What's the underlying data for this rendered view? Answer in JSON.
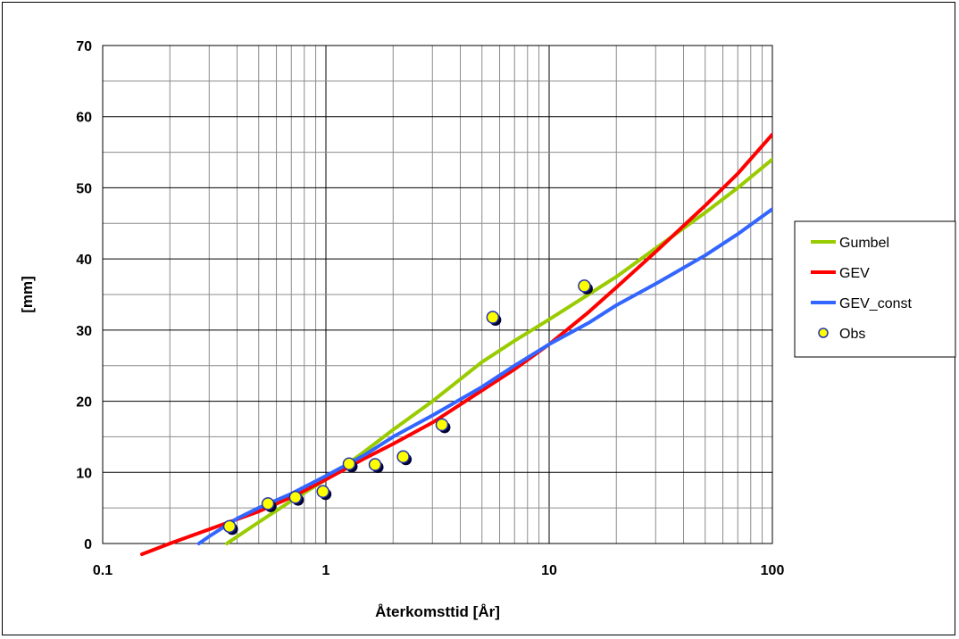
{
  "chart_data": {
    "type": "line",
    "xscale": "log",
    "xlim": [
      0.1,
      100
    ],
    "ylim": [
      0,
      70
    ],
    "xticks": [
      0.1,
      1,
      10,
      100
    ],
    "xtick_labels": [
      "0.1",
      "1",
      "10",
      "100"
    ],
    "yticks": [
      0,
      10,
      20,
      30,
      40,
      50,
      60,
      70
    ],
    "ytick_labels": [
      "0",
      "10",
      "20",
      "30",
      "40",
      "50",
      "60",
      "70"
    ],
    "xlabel": "Återkomsttid [År]",
    "ylabel": "[mm]",
    "grid": true,
    "legend_position": "right",
    "series": [
      {
        "name": "Gumbel",
        "color": "#99cc00",
        "x": [
          0.36,
          0.5,
          0.7,
          1,
          1.5,
          2,
          3,
          5,
          7,
          10,
          15,
          20,
          30,
          50,
          70,
          100
        ],
        "y": [
          0,
          3,
          6,
          9,
          13,
          16,
          20,
          25.5,
          28.5,
          31.5,
          35,
          37.5,
          41.5,
          46.5,
          50,
          54
        ]
      },
      {
        "name": "GEV",
        "color": "#ff0000",
        "x": [
          0.15,
          0.2,
          0.3,
          0.5,
          0.7,
          1,
          1.5,
          2,
          3,
          5,
          7,
          10,
          15,
          20,
          30,
          50,
          70,
          100
        ],
        "y": [
          -1.5,
          0,
          2,
          4.5,
          6.5,
          9,
          12,
          14,
          17,
          21.5,
          24.5,
          28,
          32.5,
          36,
          41,
          47.5,
          52,
          57.5
        ]
      },
      {
        "name": "GEV_const",
        "color": "#3366ff",
        "x": [
          0.27,
          0.3,
          0.4,
          0.5,
          0.7,
          1,
          1.5,
          2,
          3,
          5,
          7,
          10,
          15,
          20,
          30,
          50,
          70,
          100
        ],
        "y": [
          0,
          1,
          3.5,
          5,
          7,
          9.5,
          12.5,
          15,
          18,
          22,
          25,
          28,
          31,
          33.5,
          36.5,
          40.5,
          43.5,
          47
        ]
      },
      {
        "name": "Obs",
        "type": "scatter",
        "color": "#ffff00",
        "x": [
          0.37,
          0.55,
          0.73,
          0.97,
          1.27,
          1.66,
          2.22,
          3.31,
          5.59,
          14.38
        ],
        "y": [
          2.4,
          5.6,
          6.5,
          7.3,
          11.2,
          11.1,
          12.2,
          16.7,
          31.8,
          36.2
        ]
      }
    ]
  },
  "legend": {
    "items": [
      {
        "label": "Gumbel",
        "color": "#99cc00",
        "kind": "line"
      },
      {
        "label": "GEV",
        "color": "#ff0000",
        "kind": "line"
      },
      {
        "label": "GEV_const",
        "color": "#3366ff",
        "kind": "line"
      },
      {
        "label": "Obs",
        "color": "#ffff00",
        "kind": "marker"
      }
    ]
  }
}
